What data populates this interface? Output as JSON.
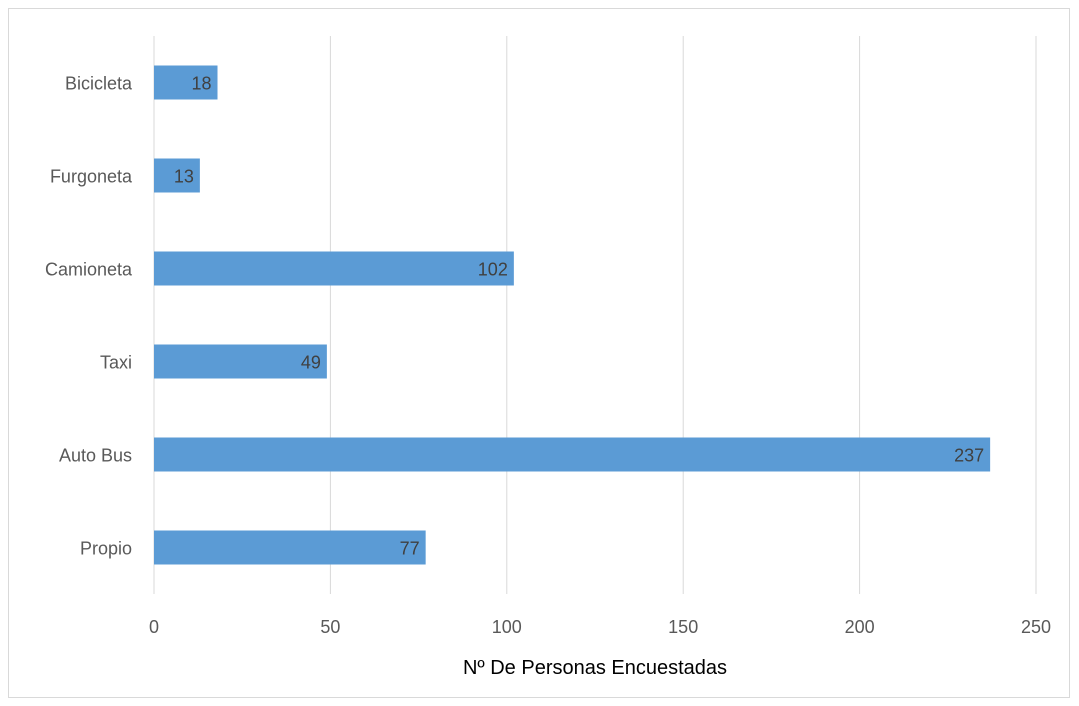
{
  "chart_data": {
    "type": "bar",
    "orientation": "horizontal",
    "categories": [
      "Bicicleta",
      "Furgoneta",
      "Camioneta",
      "Taxi",
      "Auto Bus",
      "Propio"
    ],
    "values": [
      18,
      13,
      102,
      49,
      237,
      77
    ],
    "xlabel": "Nº De Personas Encuestadas",
    "ylabel": "",
    "xlim": [
      0,
      250
    ],
    "xticks": [
      "0",
      "50",
      "100",
      "150",
      "200",
      "250"
    ],
    "grid": true,
    "legend": "none",
    "bar_color": "#5b9bd5"
  }
}
